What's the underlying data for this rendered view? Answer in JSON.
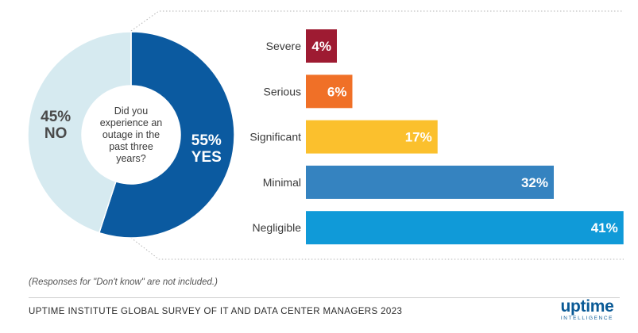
{
  "chart_data": [
    {
      "type": "pie",
      "donut": true,
      "question": [
        "Did you",
        "experience an",
        "outage in the",
        "past three",
        "years?"
      ],
      "slices": [
        {
          "label": "YES",
          "value": 55,
          "display": "55%",
          "color": "#0b5aa0"
        },
        {
          "label": "NO",
          "value": 45,
          "display": "45%",
          "color": "#d6eaf0"
        }
      ]
    },
    {
      "type": "bar",
      "orientation": "horizontal",
      "categories": [
        "Severe",
        "Serious",
        "Significant",
        "Minimal",
        "Negligible"
      ],
      "values": [
        4,
        6,
        17,
        32,
        41
      ],
      "labels": [
        "4%",
        "6%",
        "17%",
        "32%",
        "41%"
      ],
      "colors": [
        "#9e1b32",
        "#f07027",
        "#fbc02d",
        "#3583c0",
        "#109ad8"
      ],
      "unit": "%"
    }
  ],
  "note": "(Responses for \"Don't know\" are not included.)",
  "footer": "UPTIME INSTITUTE GLOBAL SURVEY OF IT AND DATA CENTER MANAGERS 2023",
  "logo": {
    "word": "uptime",
    "sub": "INTELLIGENCE"
  }
}
